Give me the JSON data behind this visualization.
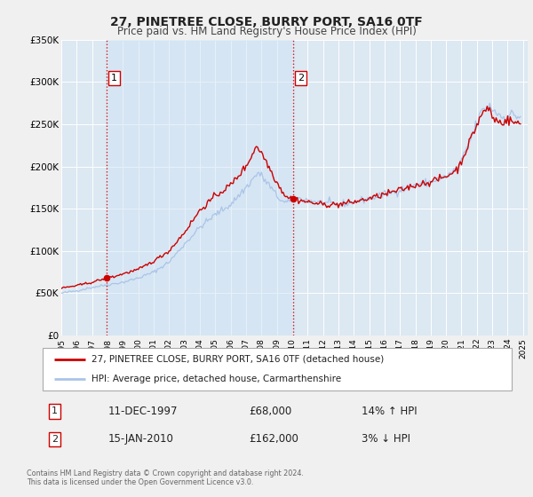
{
  "title": "27, PINETREE CLOSE, BURRY PORT, SA16 0TF",
  "subtitle": "Price paid vs. HM Land Registry's House Price Index (HPI)",
  "legend_line1": "27, PINETREE CLOSE, BURRY PORT, SA16 0TF (detached house)",
  "legend_line2": "HPI: Average price, detached house, Carmarthenshire",
  "annotation1_date": "11-DEC-1997",
  "annotation1_price": "£68,000",
  "annotation1_hpi": "14% ↑ HPI",
  "annotation2_date": "15-JAN-2010",
  "annotation2_price": "£162,000",
  "annotation2_hpi": "3% ↓ HPI",
  "footer1": "Contains HM Land Registry data © Crown copyright and database right 2024.",
  "footer2": "This data is licensed under the Open Government Licence v3.0.",
  "sale1_date_num": 1997.95,
  "sale1_price": 68000,
  "sale2_date_num": 2010.04,
  "sale2_price": 162000,
  "hpi_color": "#aac4e8",
  "price_color": "#cc0000",
  "vline_color": "#cc0000",
  "fill_color": "#d0e4f5",
  "bg_color": "#dce8f2",
  "outer_bg": "#f0f0f0",
  "grid_color": "#ffffff",
  "ylim": [
    0,
    350000
  ],
  "xlim_start": 1995.0,
  "xlim_end": 2025.3
}
